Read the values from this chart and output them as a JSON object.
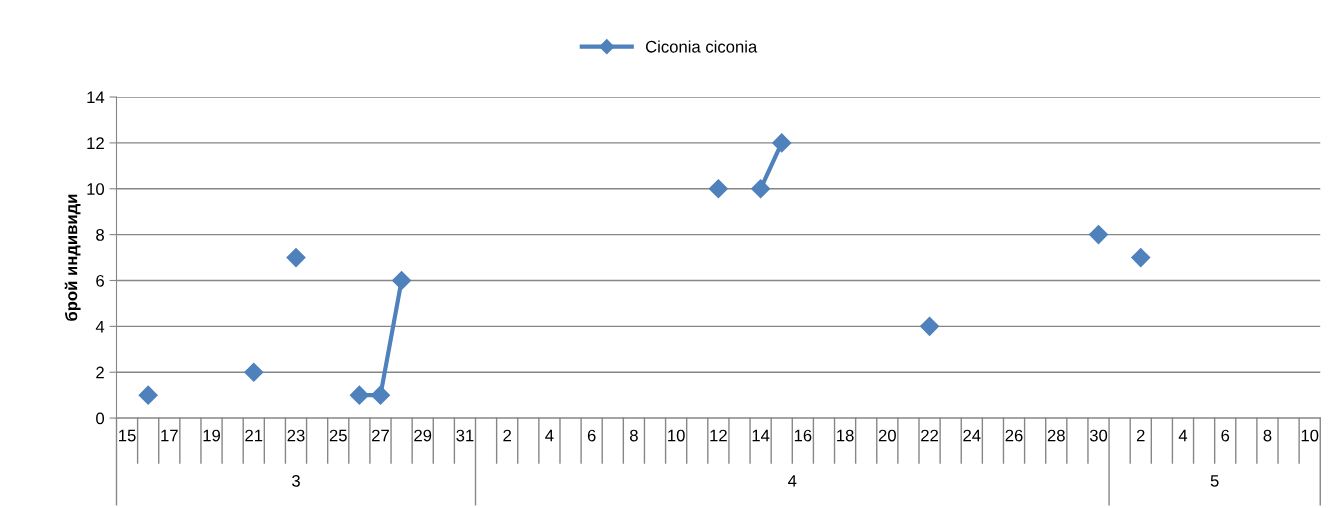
{
  "chart_data": {
    "type": "line",
    "ylabel": "брой индивиди",
    "categories": [
      "15",
      null,
      "17",
      null,
      "19",
      null,
      "21",
      null,
      "23",
      null,
      "25",
      null,
      "27",
      null,
      "29",
      null,
      "31",
      null,
      "2",
      null,
      "4",
      null,
      "6",
      null,
      "8",
      null,
      "10",
      null,
      "12",
      null,
      "14",
      null,
      "16",
      null,
      "18",
      null,
      "20",
      null,
      "22",
      null,
      "24",
      null,
      "26",
      null,
      "28",
      null,
      "30",
      null,
      "2",
      null,
      "4",
      null,
      "6",
      null,
      "8",
      null,
      "10"
    ],
    "series": [
      {
        "name": "Ciconia ciconia",
        "color": "#4f81bd",
        "values": [
          null,
          1,
          null,
          null,
          null,
          null,
          2,
          null,
          7,
          null,
          null,
          1,
          1,
          6,
          null,
          null,
          null,
          null,
          null,
          null,
          null,
          null,
          null,
          null,
          null,
          null,
          null,
          null,
          10,
          null,
          10,
          12,
          null,
          null,
          null,
          null,
          null,
          null,
          4,
          null,
          null,
          null,
          null,
          null,
          null,
          null,
          8,
          null,
          7,
          null,
          null,
          null,
          null,
          null,
          null,
          null,
          null
        ]
      }
    ],
    "annotations": [
      "3",
      "4",
      "5"
    ],
    "ylim": [
      0,
      14
    ],
    "yticks": [
      0,
      2,
      4,
      6,
      8,
      10,
      12,
      14
    ],
    "grid": "y",
    "legend": "top",
    "marker": "diamond",
    "line_style": "solid"
  }
}
